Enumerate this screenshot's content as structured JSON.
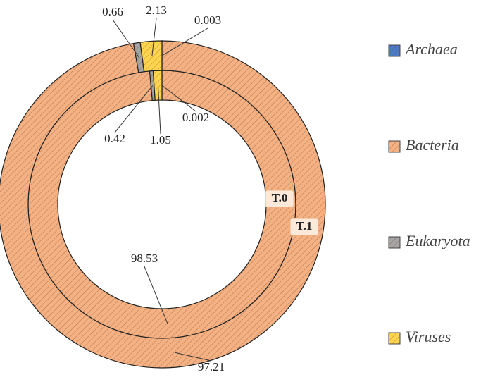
{
  "chart_data": {
    "type": "doughnut",
    "categories": [
      "Archaea",
      "Bacteria",
      "Eukaryota",
      "Viruses"
    ],
    "colors": [
      "#4a7ac8",
      "#f4b183",
      "#a5a5a5",
      "#ffd54f"
    ],
    "series": [
      {
        "name": "T.0",
        "values": [
          0.002,
          98.53,
          0.42,
          1.05
        ]
      },
      {
        "name": "T.1",
        "values": [
          0.003,
          97.21,
          0.66,
          2.13
        ]
      }
    ]
  }
}
